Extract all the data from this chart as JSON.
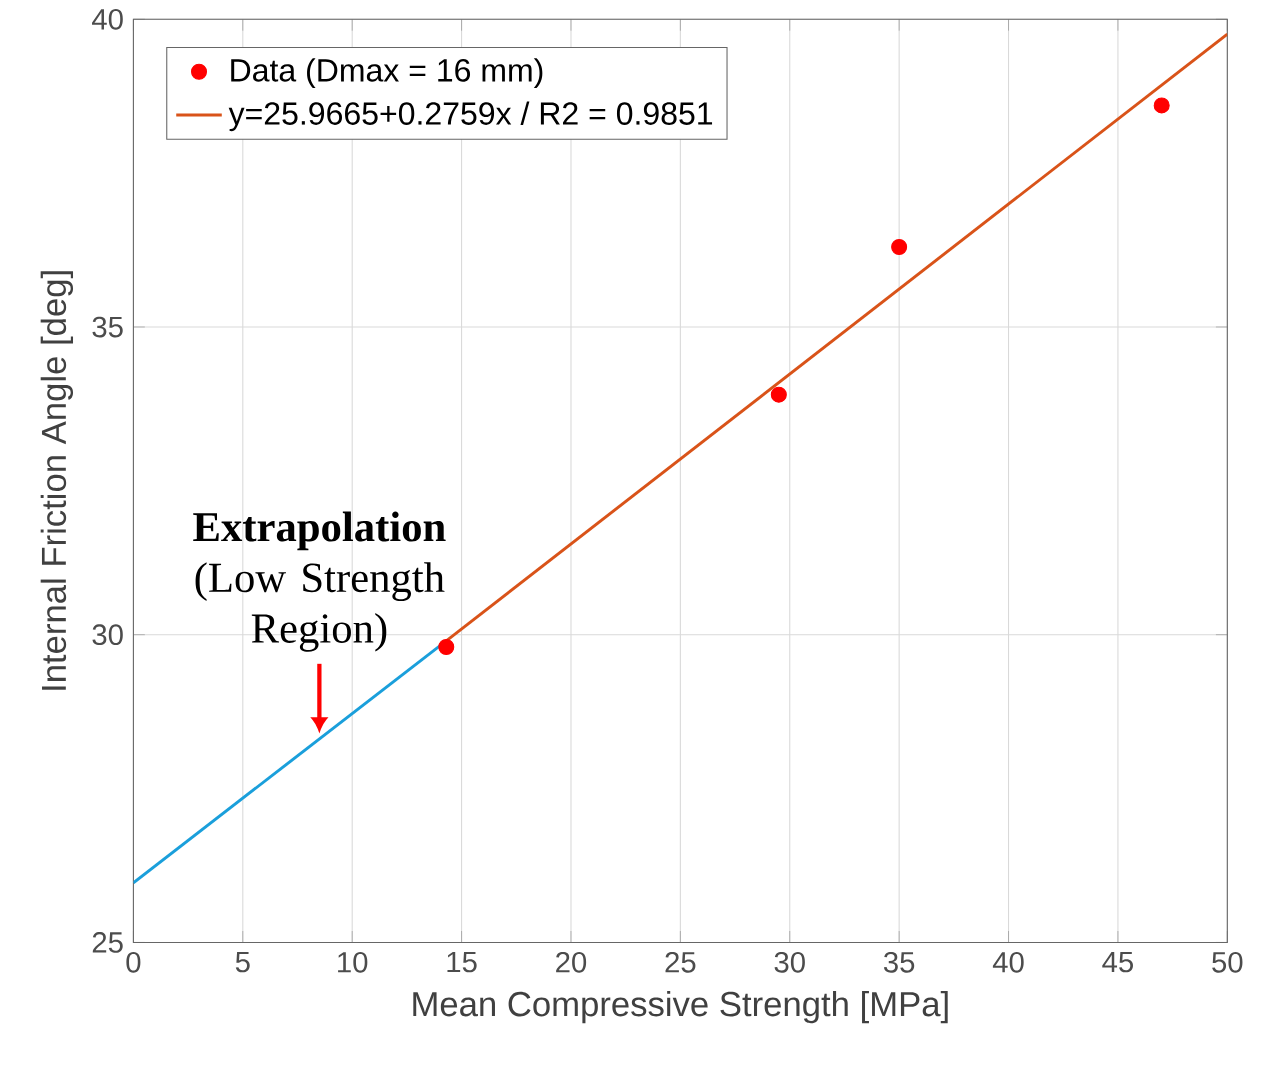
{
  "chart_data": {
    "type": "scatter",
    "xlabel": "Mean Compressive Strength [MPa]",
    "ylabel": "Internal Friction Angle [deg]",
    "xlim": [
      0,
      50
    ],
    "ylim": [
      25,
      40
    ],
    "xticks": [
      0,
      5,
      10,
      15,
      20,
      25,
      30,
      35,
      40,
      45,
      50
    ],
    "yticks": [
      25,
      30,
      35,
      40
    ],
    "grid": true,
    "legend": "top left",
    "marker": "circle",
    "series": [
      {
        "name": "Data (Dmax = 16 mm)",
        "type": "scatter",
        "color": "#ff0000",
        "x": [
          14.3,
          29.5,
          35,
          47
        ],
        "values": [
          29.8,
          33.9,
          36.3,
          38.6
        ]
      },
      {
        "name": "y=25.9665+0.2759x / R2 = 0.9851",
        "type": "line",
        "marker": "none",
        "color": "#d95319",
        "x": [
          14.3,
          50
        ],
        "values": [
          29.9,
          39.76
        ]
      },
      {
        "type": "line",
        "marker": "none",
        "color": "#1a9fdb",
        "x": [
          0,
          14.3
        ],
        "values": [
          25.97,
          29.9
        ]
      }
    ],
    "annotations": [
      {
        "text": "**Extrapolation** (Low Strength Region)",
        "x": 8.5,
        "y": 28.4
      }
    ]
  }
}
